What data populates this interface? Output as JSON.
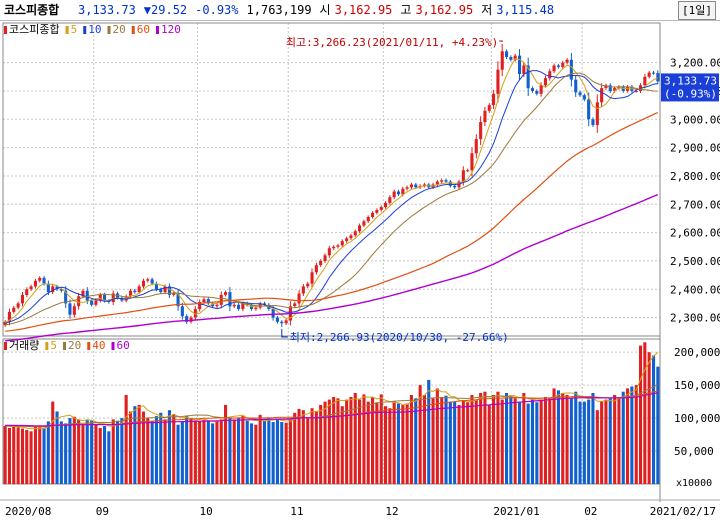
{
  "header": {
    "name": "코스피종합",
    "price": "3,133.73",
    "change": "▼29.52",
    "change_pct": "-0.93%",
    "volume": "1,763,199",
    "open_label": "시",
    "open": "3,162.95",
    "high_label": "고",
    "high": "3,162.95",
    "low_label": "저",
    "low": "3,115.48",
    "period": "[1일]"
  },
  "colors": {
    "up": "#e02020",
    "down": "#1060d0",
    "ma5": "#d4a017",
    "ma10": "#1a3fd8",
    "ma20": "#9b7a3a",
    "ma60": "#e05010",
    "ma120": "#b000d0",
    "vma5": "#d4a017",
    "vma20": "#9b7a3a",
    "vma40": "#e05010",
    "vma60": "#b000d0"
  },
  "chart_data": {
    "type": "candlestick",
    "price_panel": {
      "legend": [
        {
          "label": "코스피종합",
          "color": "#e02020"
        },
        {
          "label": "5",
          "color": "#d4a017"
        },
        {
          "label": "10",
          "color": "#1a3fd8"
        },
        {
          "label": "20",
          "color": "#9b7a3a"
        },
        {
          "label": "60",
          "color": "#e05010"
        },
        {
          "label": "120",
          "color": "#b000d0"
        }
      ],
      "y_ticks": [
        "2,300.00",
        "2,400.00",
        "2,500.00",
        "2,600.00",
        "2,700.00",
        "2,800.00",
        "2,900.00",
        "3,000.00",
        "3,100.00",
        "3,200.00"
      ],
      "y_tick_values": [
        2300,
        2400,
        2500,
        2600,
        2700,
        2800,
        2900,
        3000,
        3100,
        3200
      ],
      "ylim": [
        2235,
        3340
      ],
      "current_label": [
        "3,133.73",
        "(-0.93%)"
      ],
      "current_value": 3133.73,
      "high_annotation": "최고:3,266.23(2021/01/11, +4.23%)",
      "high_value": 3266.23,
      "low_annotation": "최저:2,266.93(2020/10/30, -27.66%)",
      "low_value": 2266.93,
      "closes": [
        2285,
        2320,
        2335,
        2350,
        2380,
        2400,
        2410,
        2430,
        2440,
        2420,
        2390,
        2410,
        2400,
        2395,
        2350,
        2310,
        2340,
        2375,
        2395,
        2360,
        2345,
        2360,
        2380,
        2360,
        2355,
        2385,
        2370,
        2360,
        2375,
        2395,
        2390,
        2410,
        2430,
        2435,
        2420,
        2400,
        2390,
        2410,
        2380,
        2385,
        2340,
        2305,
        2285,
        2300,
        2330,
        2355,
        2365,
        2350,
        2340,
        2345,
        2380,
        2390,
        2340,
        2345,
        2330,
        2350,
        2345,
        2330,
        2335,
        2350,
        2345,
        2330,
        2300,
        2285,
        2280,
        2290,
        2340,
        2350,
        2385,
        2410,
        2420,
        2460,
        2485,
        2500,
        2520,
        2545,
        2550,
        2555,
        2570,
        2580,
        2590,
        2605,
        2625,
        2640,
        2655,
        2670,
        2680,
        2690,
        2705,
        2725,
        2745,
        2735,
        2755,
        2760,
        2770,
        2760,
        2765,
        2770,
        2760,
        2770,
        2780,
        2785,
        2780,
        2765,
        2760,
        2780,
        2820,
        2820,
        2880,
        2930,
        2990,
        3030,
        3050,
        3090,
        3175,
        3240,
        3220,
        3210,
        3225,
        3160,
        3190,
        3110,
        3100,
        3090,
        3120,
        3145,
        3170,
        3190,
        3185,
        3200,
        3210,
        3140,
        3095,
        3085,
        3070,
        3000,
        2980,
        3060,
        3110,
        3120,
        3100,
        3110,
        3115,
        3100,
        3115,
        3100,
        3100,
        3120,
        3150,
        3165,
        3163,
        3134
      ]
    },
    "volume_panel": {
      "legend": [
        {
          "label": "거래량",
          "color": "#e02020"
        },
        {
          "label": "5",
          "color": "#d4a017"
        },
        {
          "label": "20",
          "color": "#9b7a3a"
        },
        {
          "label": "40",
          "color": "#e05010"
        },
        {
          "label": "60",
          "color": "#b000d0"
        }
      ],
      "y_ticks": [
        "50,000",
        "100,000",
        "150,000",
        "200,000"
      ],
      "y_tick_values": [
        50000,
        100000,
        150000,
        200000
      ],
      "unit_label": "x10000",
      "ylim": [
        0,
        220000
      ],
      "volumes": [
        88000,
        85000,
        87000,
        86000,
        84000,
        82000,
        80000,
        88000,
        86000,
        85000,
        95000,
        125000,
        110000,
        95000,
        92000,
        100000,
        102000,
        98000,
        90000,
        97000,
        96000,
        90000,
        85000,
        88000,
        80000,
        98000,
        96000,
        100000,
        135000,
        110000,
        118000,
        120000,
        110000,
        100000,
        95000,
        103000,
        108000,
        98000,
        112000,
        106000,
        90000,
        95000,
        104000,
        100000,
        96000,
        95000,
        97000,
        95000,
        92000,
        96000,
        98000,
        120000,
        102000,
        98000,
        100000,
        103000,
        96000,
        92000,
        90000,
        105000,
        96000,
        100000,
        94000,
        98000,
        94000,
        93000,
        98000,
        108000,
        114000,
        112000,
        100000,
        115000,
        110000,
        120000,
        125000,
        128000,
        132000,
        130000,
        118000,
        128000,
        132000,
        138000,
        128000,
        136000,
        125000,
        132000,
        124000,
        136000,
        118000,
        115000,
        125000,
        122000,
        120000,
        122000,
        135000,
        130000,
        150000,
        135000,
        158000,
        130000,
        145000,
        132000,
        134000,
        125000,
        125000,
        120000,
        127000,
        124000,
        135000,
        128000,
        138000,
        140000,
        120000,
        135000,
        140000,
        128000,
        138000,
        132000,
        130000,
        125000,
        138000,
        122000,
        128000,
        124000,
        128000,
        132000,
        130000,
        145000,
        142000,
        138000,
        135000,
        130000,
        140000,
        125000,
        125000,
        128000,
        138000,
        112000,
        125000,
        128000,
        130000,
        135000,
        130000,
        140000,
        145000,
        148000,
        150000,
        210000,
        215000,
        200000,
        195000,
        178000
      ]
    },
    "x_axis": {
      "labels": [
        {
          "label": "2020/08",
          "index": 0
        },
        {
          "label": "09",
          "index": 21
        },
        {
          "label": "10",
          "index": 45
        },
        {
          "label": "11",
          "index": 66
        },
        {
          "label": "12",
          "index": 88
        },
        {
          "label": "2021/01",
          "index": 113
        },
        {
          "label": "02",
          "index": 134
        },
        {
          "label": "2021/02/17",
          "index": 151
        }
      ]
    }
  }
}
